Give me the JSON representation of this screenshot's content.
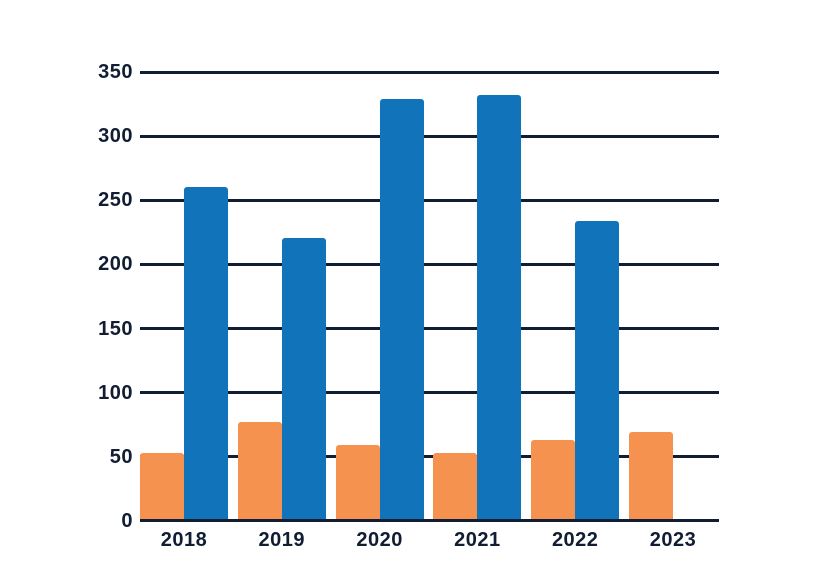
{
  "chart_data": {
    "type": "bar",
    "title": "",
    "xlabel": "",
    "ylabel": "",
    "categories": [
      "2018",
      "2019",
      "2020",
      "2021",
      "2022",
      "2023"
    ],
    "series": [
      {
        "name": "orange-series",
        "color": "#f6924f",
        "values": [
          53,
          77,
          59,
          53,
          63,
          69
        ]
      },
      {
        "name": "blue-series",
        "color": "#1173b9",
        "values": [
          260,
          221,
          329,
          332,
          234,
          null
        ]
      }
    ],
    "ylim": [
      0,
      350
    ],
    "yticks": [
      0,
      50,
      100,
      150,
      200,
      250,
      300,
      350
    ],
    "grid": true,
    "legend": false,
    "axis_color": "#111d33",
    "text_color": "#111d33",
    "background": "#ffffff"
  }
}
